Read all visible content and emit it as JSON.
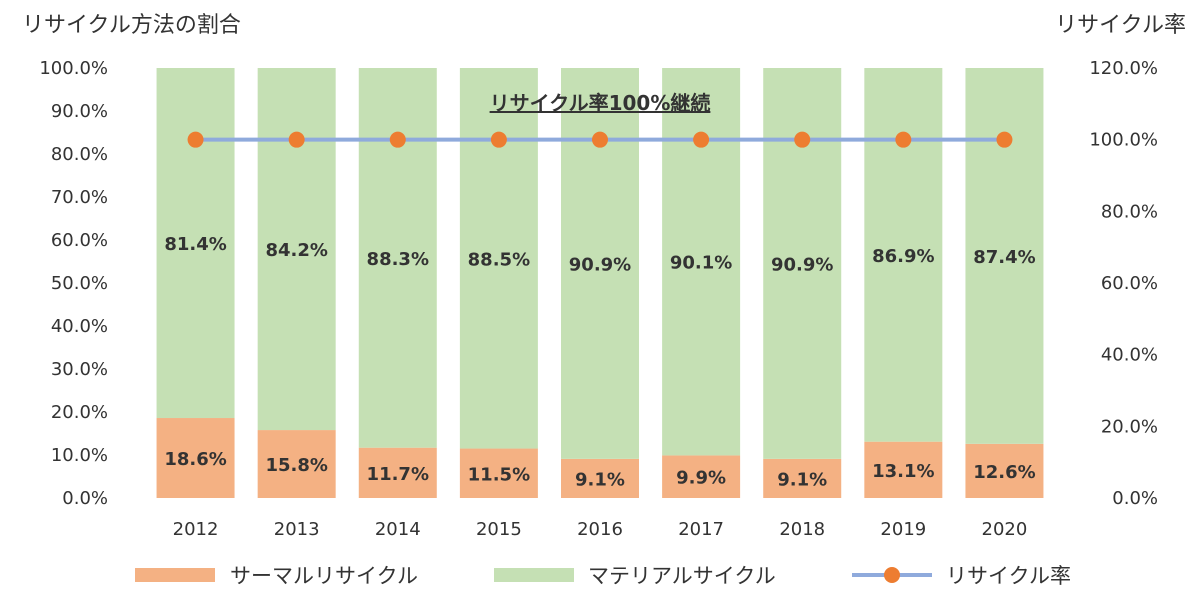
{
  "chart_data": {
    "type": "bar",
    "stacked": true,
    "y_title_left": "リサイクル方法の割合",
    "y_title_right": "リサイクル率",
    "annotation": "リサイクル率100%継続",
    "categories": [
      "2012",
      "2013",
      "2014",
      "2015",
      "2016",
      "2017",
      "2018",
      "2019",
      "2020"
    ],
    "series": [
      {
        "name": "サーマルリサイクル",
        "values": [
          18.6,
          15.8,
          11.7,
          11.5,
          9.1,
          9.9,
          9.1,
          13.1,
          12.6
        ],
        "labels": [
          "18.6%",
          "15.8%",
          "11.7%",
          "11.5%",
          "9.1%",
          "9.9%",
          "9.1%",
          "13.1%",
          "12.6%"
        ],
        "color": "#f4b183"
      },
      {
        "name": "マテリアルサイクル",
        "values": [
          81.4,
          84.2,
          88.3,
          88.5,
          90.9,
          90.1,
          90.9,
          86.9,
          87.4
        ],
        "labels": [
          "81.4%",
          "84.2%",
          "88.3%",
          "88.5%",
          "90.9%",
          "90.1%",
          "90.9%",
          "86.9%",
          "87.4%"
        ],
        "color": "#c5e0b4"
      },
      {
        "name": "リサイクル率",
        "type": "line",
        "axis": "right",
        "values": [
          100,
          100,
          100,
          100,
          100,
          100,
          100,
          100,
          100
        ],
        "line_color": "#8faadc",
        "marker_color": "#ed7d31"
      }
    ],
    "y_left": {
      "ylim": [
        0,
        100
      ],
      "ticks": [
        "0.0%",
        "10.0%",
        "20.0%",
        "30.0%",
        "40.0%",
        "50.0%",
        "60.0%",
        "70.0%",
        "80.0%",
        "90.0%",
        "100.0%"
      ]
    },
    "y_right": {
      "ylim": [
        0,
        120
      ],
      "ticks": [
        "0.0%",
        "20.0%",
        "40.0%",
        "60.0%",
        "80.0%",
        "100.0%",
        "120.0%"
      ]
    },
    "grid": false,
    "legend_position": "bottom"
  }
}
